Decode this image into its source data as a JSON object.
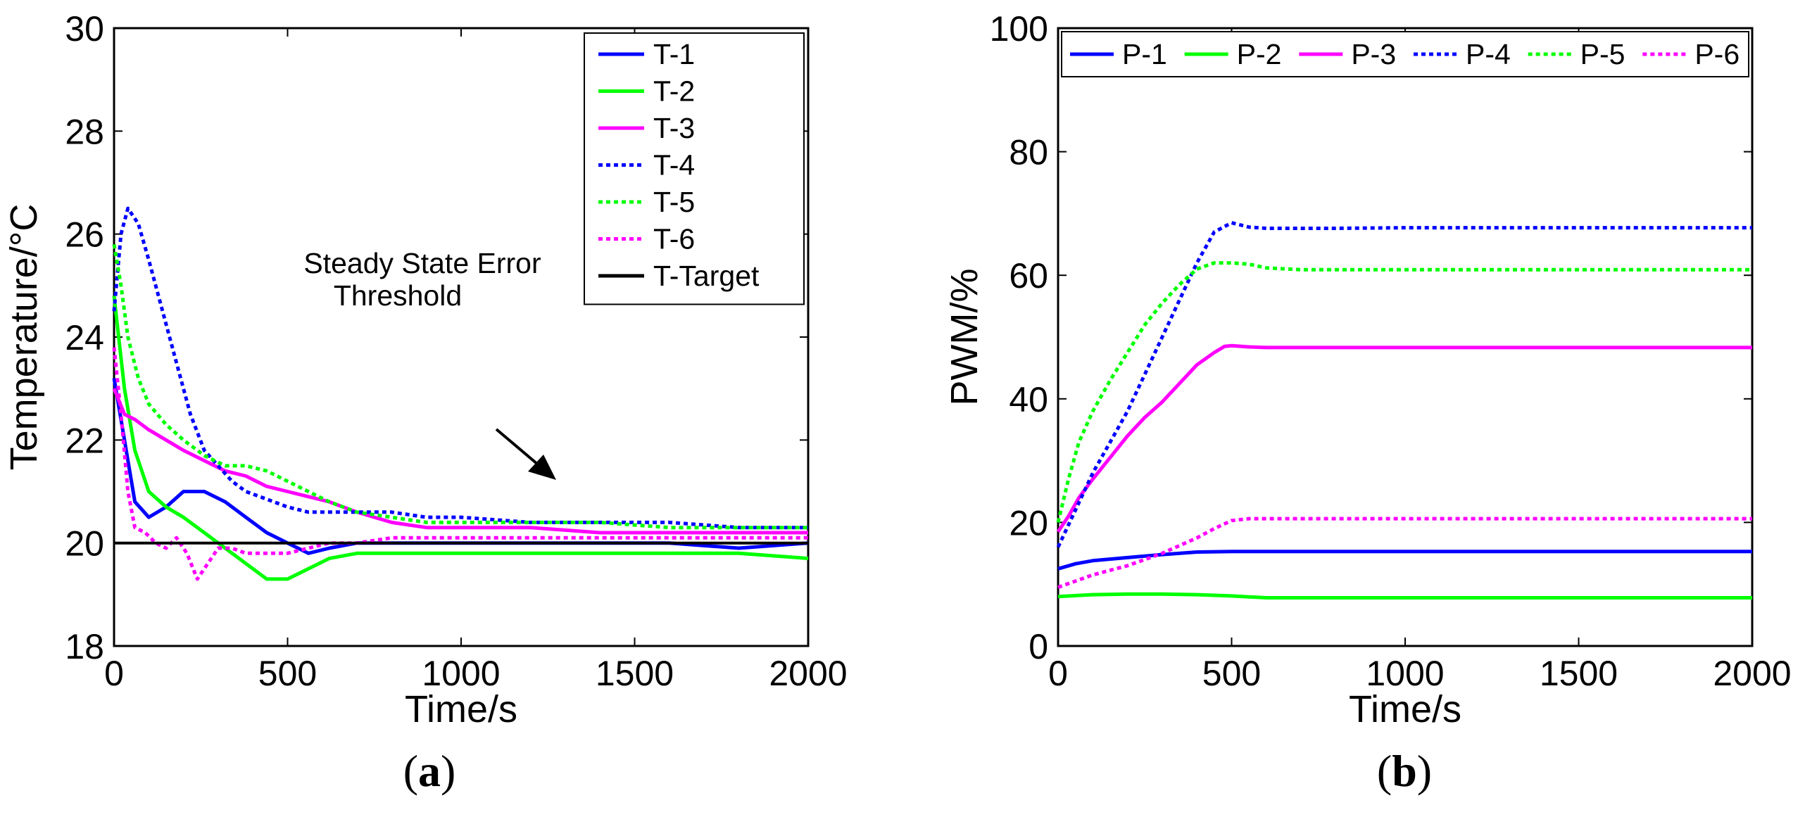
{
  "chart_data": [
    {
      "id": "a",
      "type": "line",
      "panel_label": "a",
      "xlabel": "Time/s",
      "ylabel": "Temperature/°C",
      "xlim": [
        0,
        2000
      ],
      "ylim": [
        18,
        30
      ],
      "xticks": [
        0,
        500,
        1000,
        1500,
        2000
      ],
      "yticks": [
        18,
        20,
        22,
        24,
        26,
        28,
        30
      ],
      "legend_position": "top-right",
      "annotation": {
        "lines": [
          "Steady State Error",
          "Threshold"
        ]
      },
      "series": [
        {
          "name": "T-1",
          "color": "#0000ff",
          "style": "solid",
          "x": [
            0,
            30,
            60,
            100,
            150,
            200,
            260,
            320,
            380,
            440,
            500,
            560,
            620,
            700,
            800,
            900,
            1000,
            1200,
            1400,
            1600,
            1800,
            2000
          ],
          "y": [
            23.2,
            22.0,
            20.8,
            20.5,
            20.7,
            21.0,
            21.0,
            20.8,
            20.5,
            20.2,
            20.0,
            19.8,
            19.9,
            20.0,
            20.0,
            20.0,
            20.0,
            20.0,
            20.0,
            20.0,
            19.9,
            20.0
          ]
        },
        {
          "name": "T-2",
          "color": "#00ff00",
          "style": "solid",
          "x": [
            0,
            30,
            60,
            100,
            150,
            200,
            260,
            320,
            380,
            440,
            500,
            560,
            620,
            700,
            800,
            900,
            1000,
            1200,
            1400,
            1600,
            1800,
            2000
          ],
          "y": [
            24.8,
            23.0,
            21.8,
            21.0,
            20.7,
            20.5,
            20.2,
            19.9,
            19.6,
            19.3,
            19.3,
            19.5,
            19.7,
            19.8,
            19.8,
            19.8,
            19.8,
            19.8,
            19.8,
            19.8,
            19.8,
            19.7
          ]
        },
        {
          "name": "T-3",
          "color": "#ff00ff",
          "style": "solid",
          "x": [
            0,
            30,
            60,
            100,
            150,
            200,
            260,
            320,
            380,
            440,
            500,
            560,
            620,
            700,
            800,
            900,
            1000,
            1200,
            1400,
            1600,
            1800,
            2000
          ],
          "y": [
            23.0,
            22.5,
            22.4,
            22.2,
            22.0,
            21.8,
            21.6,
            21.4,
            21.3,
            21.1,
            21.0,
            20.9,
            20.8,
            20.6,
            20.4,
            20.3,
            20.3,
            20.3,
            20.2,
            20.2,
            20.2,
            20.2
          ]
        },
        {
          "name": "T-4",
          "color": "#0000ff",
          "style": "dotted",
          "x": [
            0,
            20,
            40,
            70,
            100,
            140,
            180,
            220,
            260,
            300,
            340,
            380,
            420,
            460,
            500,
            560,
            620,
            700,
            800,
            900,
            1000,
            1200,
            1400,
            1600,
            1800,
            2000
          ],
          "y": [
            24.5,
            26.0,
            26.5,
            26.2,
            25.5,
            24.5,
            23.5,
            22.5,
            21.8,
            21.5,
            21.2,
            21.0,
            20.9,
            20.8,
            20.7,
            20.6,
            20.6,
            20.6,
            20.6,
            20.5,
            20.5,
            20.4,
            20.4,
            20.4,
            20.3,
            20.3
          ]
        },
        {
          "name": "T-5",
          "color": "#00ff00",
          "style": "dotted",
          "x": [
            0,
            20,
            40,
            70,
            100,
            150,
            200,
            260,
            320,
            380,
            440,
            500,
            560,
            620,
            700,
            800,
            900,
            1000,
            1200,
            1400,
            1600,
            1800,
            2000
          ],
          "y": [
            25.8,
            25.0,
            24.0,
            23.2,
            22.7,
            22.3,
            22.0,
            21.7,
            21.5,
            21.5,
            21.4,
            21.2,
            21.0,
            20.8,
            20.6,
            20.5,
            20.4,
            20.4,
            20.4,
            20.4,
            20.3,
            20.3,
            20.3
          ]
        },
        {
          "name": "T-6",
          "color": "#ff00ff",
          "style": "dotted",
          "x": [
            0,
            20,
            40,
            60,
            90,
            120,
            150,
            180,
            210,
            240,
            270,
            300,
            340,
            380,
            420,
            460,
            500,
            560,
            620,
            700,
            800,
            900,
            1000,
            1200,
            1400,
            1600,
            1800,
            2000
          ],
          "y": [
            23.8,
            22.5,
            21.0,
            20.3,
            20.2,
            20.0,
            19.9,
            20.1,
            19.8,
            19.3,
            19.6,
            19.9,
            19.9,
            19.8,
            19.8,
            19.8,
            19.8,
            19.9,
            20.0,
            20.0,
            20.1,
            20.1,
            20.1,
            20.1,
            20.1,
            20.1,
            20.1,
            20.1
          ]
        },
        {
          "name": "T-Target",
          "color": "#000000",
          "style": "solid",
          "x": [
            0,
            2000
          ],
          "y": [
            20,
            20
          ]
        }
      ]
    },
    {
      "id": "b",
      "type": "line",
      "panel_label": "b",
      "xlabel": "Time/s",
      "ylabel": "PWM/%",
      "xlim": [
        0,
        2000
      ],
      "ylim": [
        0,
        100
      ],
      "xticks": [
        0,
        500,
        1000,
        1500,
        2000
      ],
      "yticks": [
        0,
        20,
        40,
        60,
        80,
        100
      ],
      "legend_position": "top",
      "series": [
        {
          "name": "P-1",
          "color": "#0000ff",
          "style": "solid",
          "x": [
            0,
            50,
            100,
            200,
            300,
            400,
            500,
            600,
            800,
            1000,
            1500,
            2000
          ],
          "y": [
            12.5,
            13.3,
            13.8,
            14.3,
            14.8,
            15.2,
            15.3,
            15.3,
            15.3,
            15.3,
            15.3,
            15.3
          ]
        },
        {
          "name": "P-2",
          "color": "#00ff00",
          "style": "solid",
          "x": [
            0,
            100,
            200,
            300,
            400,
            500,
            600,
            800,
            1000,
            1500,
            2000
          ],
          "y": [
            8.0,
            8.3,
            8.4,
            8.4,
            8.3,
            8.1,
            7.8,
            7.8,
            7.8,
            7.8,
            7.8
          ]
        },
        {
          "name": "P-3",
          "color": "#ff00ff",
          "style": "solid",
          "x": [
            0,
            30,
            60,
            100,
            150,
            200,
            250,
            300,
            350,
            400,
            450,
            480,
            500,
            550,
            600,
            800,
            1000,
            1500,
            2000
          ],
          "y": [
            18.5,
            21.0,
            24.0,
            27.0,
            30.5,
            34.0,
            37.0,
            39.5,
            42.5,
            45.5,
            47.5,
            48.5,
            48.6,
            48.4,
            48.3,
            48.3,
            48.3,
            48.3,
            48.3
          ]
        },
        {
          "name": "P-4",
          "color": "#0000ff",
          "style": "dotted",
          "x": [
            0,
            50,
            100,
            150,
            200,
            250,
            300,
            350,
            400,
            450,
            500,
            550,
            600,
            800,
            1000,
            1500,
            2000
          ],
          "y": [
            16.0,
            22.0,
            28.0,
            33.0,
            38.0,
            44.0,
            50.0,
            56.0,
            62.0,
            67.0,
            68.5,
            67.8,
            67.6,
            67.6,
            67.7,
            67.7,
            67.7
          ]
        },
        {
          "name": "P-5",
          "color": "#00ff00",
          "style": "dotted",
          "x": [
            0,
            30,
            60,
            100,
            150,
            200,
            250,
            300,
            350,
            400,
            450,
            500,
            550,
            600,
            700,
            800,
            1000,
            1500,
            2000
          ],
          "y": [
            20.0,
            27.0,
            33.0,
            38.0,
            43.0,
            47.5,
            52.0,
            55.5,
            58.5,
            61.0,
            62.0,
            62.0,
            61.8,
            61.2,
            60.9,
            60.9,
            60.9,
            60.9,
            60.9
          ]
        },
        {
          "name": "P-6",
          "color": "#ff00ff",
          "style": "dotted",
          "x": [
            0,
            50,
            100,
            200,
            300,
            400,
            450,
            500,
            550,
            600,
            800,
            1000,
            1500,
            2000
          ],
          "y": [
            9.5,
            10.5,
            11.5,
            13.0,
            15.0,
            17.5,
            19.0,
            20.3,
            20.6,
            20.6,
            20.6,
            20.6,
            20.6,
            20.6
          ]
        }
      ]
    }
  ]
}
